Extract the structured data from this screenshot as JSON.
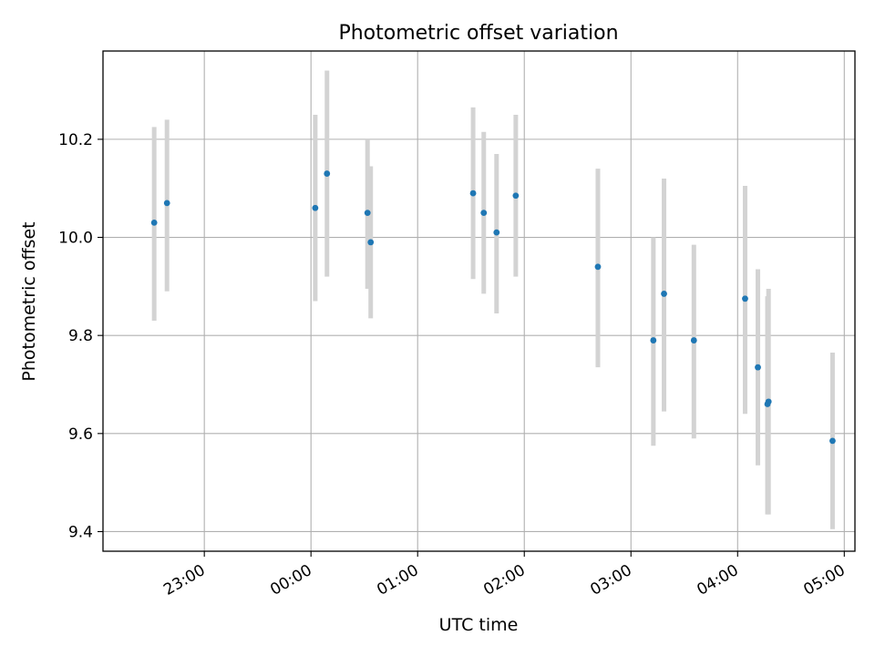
{
  "chart_data": {
    "type": "scatter",
    "title": "Photometric offset variation",
    "xlabel": "UTC time",
    "ylabel": "Photometric offset",
    "xlim_hours": [
      22.05,
      29.1
    ],
    "ylim": [
      9.36,
      10.38
    ],
    "grid": true,
    "colors": {
      "point": "#1f77b4",
      "errorbar": "#d3d3d3",
      "grid": "#b0b0b0",
      "axes": "#000000"
    },
    "x_ticks": [
      {
        "value": 23,
        "label": "23:00"
      },
      {
        "value": 24,
        "label": "00:00"
      },
      {
        "value": 25,
        "label": "01:00"
      },
      {
        "value": 26,
        "label": "02:00"
      },
      {
        "value": 27,
        "label": "03:00"
      },
      {
        "value": 28,
        "label": "04:00"
      },
      {
        "value": 29,
        "label": "05:00"
      }
    ],
    "y_ticks": [
      {
        "value": 9.4,
        "label": "9.4"
      },
      {
        "value": 9.6,
        "label": "9.6"
      },
      {
        "value": 9.8,
        "label": "9.8"
      },
      {
        "value": 10.0,
        "label": "10.0"
      },
      {
        "value": 10.2,
        "label": "10.2"
      }
    ],
    "points": [
      {
        "t": 22.53,
        "y": 10.03,
        "lo": 9.83,
        "hi": 10.225
      },
      {
        "t": 22.65,
        "y": 10.07,
        "lo": 9.89,
        "hi": 10.24
      },
      {
        "t": 24.04,
        "y": 10.06,
        "lo": 9.87,
        "hi": 10.25
      },
      {
        "t": 24.15,
        "y": 10.13,
        "lo": 9.92,
        "hi": 10.34
      },
      {
        "t": 24.53,
        "y": 10.05,
        "lo": 9.895,
        "hi": 10.2
      },
      {
        "t": 24.56,
        "y": 9.99,
        "lo": 9.835,
        "hi": 10.145
      },
      {
        "t": 25.52,
        "y": 10.09,
        "lo": 9.915,
        "hi": 10.265
      },
      {
        "t": 25.62,
        "y": 10.05,
        "lo": 9.885,
        "hi": 10.215
      },
      {
        "t": 25.74,
        "y": 10.01,
        "lo": 9.845,
        "hi": 10.17
      },
      {
        "t": 25.92,
        "y": 10.085,
        "lo": 9.92,
        "hi": 10.25
      },
      {
        "t": 26.69,
        "y": 9.94,
        "lo": 9.735,
        "hi": 10.14
      },
      {
        "t": 27.21,
        "y": 9.79,
        "lo": 9.575,
        "hi": 10.0
      },
      {
        "t": 27.31,
        "y": 9.885,
        "lo": 9.645,
        "hi": 10.12
      },
      {
        "t": 27.59,
        "y": 9.79,
        "lo": 9.59,
        "hi": 9.985
      },
      {
        "t": 28.07,
        "y": 9.875,
        "lo": 9.64,
        "hi": 10.105
      },
      {
        "t": 28.19,
        "y": 9.735,
        "lo": 9.535,
        "hi": 9.935
      },
      {
        "t": 28.28,
        "y": 9.66,
        "lo": 9.435,
        "hi": 9.88
      },
      {
        "t": 28.29,
        "y": 9.665,
        "lo": 9.435,
        "hi": 9.895
      },
      {
        "t": 28.89,
        "y": 9.585,
        "lo": 9.405,
        "hi": 9.765
      }
    ]
  }
}
